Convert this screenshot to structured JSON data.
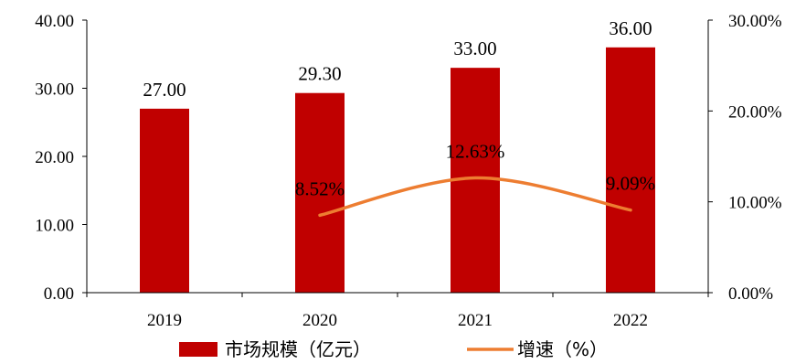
{
  "chart_data": {
    "type": "bar+line",
    "categories": [
      "2019",
      "2020",
      "2021",
      "2022"
    ],
    "series": [
      {
        "name": "市场规模（亿元）",
        "type": "bar",
        "axis": "left",
        "values": [
          27.0,
          29.3,
          33.0,
          36.0
        ],
        "labels": [
          "27.00",
          "29.30",
          "33.00",
          "36.00"
        ],
        "color": "#C00000"
      },
      {
        "name": "增速（%）",
        "type": "line",
        "axis": "right",
        "values": [
          null,
          8.52,
          12.63,
          9.09
        ],
        "labels": [
          "",
          "8.52%",
          "12.63%",
          "9.09%"
        ],
        "color": "#ED7D31"
      }
    ],
    "y_left": {
      "min": 0,
      "max": 40,
      "ticks": [
        0,
        10,
        20,
        30,
        40
      ],
      "tick_labels": [
        "0.00",
        "10.00",
        "20.00",
        "30.00",
        "40.00"
      ]
    },
    "y_right": {
      "min": 0,
      "max": 30,
      "ticks": [
        0,
        10,
        20,
        30
      ],
      "tick_labels": [
        "0.00%",
        "10.00%",
        "20.00%",
        "30.00%"
      ]
    },
    "grid": false,
    "legend_position": "bottom"
  }
}
